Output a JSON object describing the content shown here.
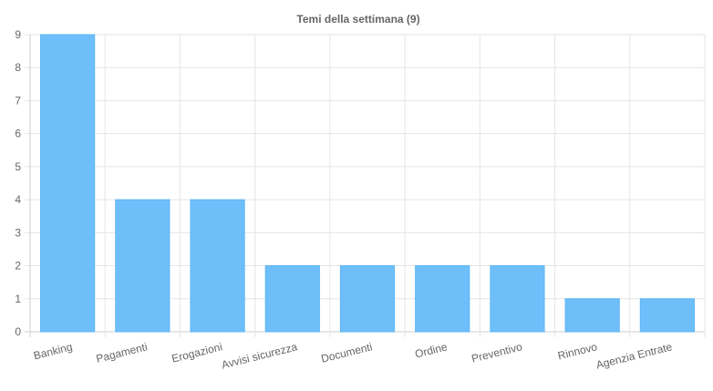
{
  "chart_data": {
    "type": "bar",
    "title": "Temi della settimana (9)",
    "categories": [
      "Banking",
      "Pagamenti",
      "Erogazioni",
      "Avvisi sicurezza",
      "Documenti",
      "Ordine",
      "Preventivo",
      "Rinnovo",
      "Agenzia Entrate"
    ],
    "values": [
      9,
      4,
      4,
      2,
      2,
      2,
      2,
      1,
      1
    ],
    "ylim": [
      0,
      9
    ],
    "yticks": [
      0,
      1,
      2,
      3,
      4,
      5,
      6,
      7,
      8,
      9
    ],
    "grid": true,
    "legend": "none",
    "colors": {
      "bar": "#6ebff9",
      "bar_border": "#5db6f5"
    }
  }
}
